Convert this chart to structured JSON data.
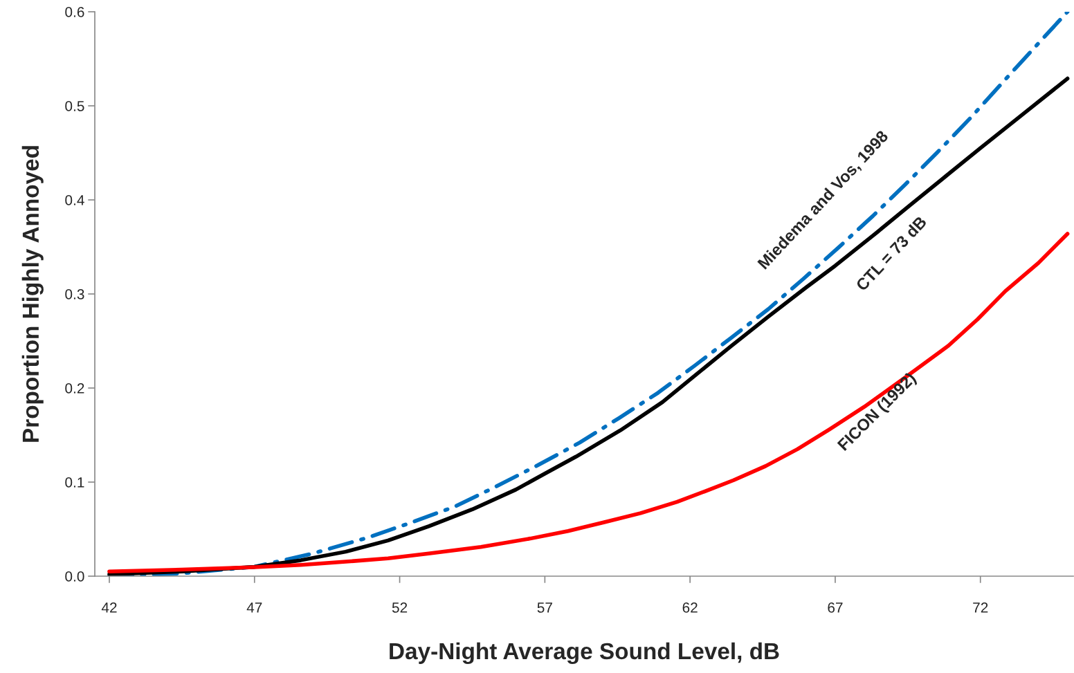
{
  "chart_data": {
    "type": "line",
    "xlabel": "Day-Night Average Sound Level, dB",
    "ylabel": "Proportion Highly Annoyed",
    "xlim": [
      41.5,
      75.2
    ],
    "ylim": [
      0,
      0.6
    ],
    "xticks": [
      42,
      47,
      52,
      57,
      62,
      67,
      72
    ],
    "yticks": [
      {
        "value": 0,
        "label": "0.0"
      },
      0.1,
      0.2,
      0.3,
      0.4,
      0.5,
      0.6
    ],
    "grid": false,
    "series": [
      {
        "color": "#0070c0",
        "line_style": "dashdot",
        "x": [
          42,
          44.5,
          47,
          49,
          50.9,
          52.4,
          53.9,
          55.3,
          56.76,
          58.2,
          59.55,
          60.9,
          62.17,
          63.4,
          64.7,
          65.9,
          67.1,
          68.3,
          69.4,
          70.5,
          71.67,
          73.3,
          75
        ],
        "values": [
          0.0,
          0.003,
          0.01,
          0.024,
          0.041,
          0.057,
          0.074,
          0.095,
          0.118,
          0.142,
          0.168,
          0.195,
          0.224,
          0.253,
          0.284,
          0.316,
          0.349,
          0.383,
          0.416,
          0.45,
          0.4875,
          0.543,
          0.6
        ]
      },
      {
        "color": "#000000",
        "line_style": "solid",
        "x": [
          42,
          44.5,
          47,
          48.6,
          50.14,
          51.6,
          53,
          54.5,
          56,
          57,
          58.07,
          59.6,
          61.05,
          62.2,
          63.43,
          64.7,
          66,
          67,
          68.3,
          69.6,
          70.8,
          72,
          73.5,
          75
        ],
        "values": [
          0.002,
          0.005,
          0.01,
          0.017,
          0.026,
          0.038,
          0.053,
          0.071,
          0.092,
          0.109,
          0.127,
          0.155,
          0.185,
          0.214,
          0.245,
          0.276,
          0.307,
          0.33,
          0.362,
          0.395,
          0.425,
          0.455,
          0.492,
          0.529
        ]
      },
      {
        "color": "#ff0000",
        "line_style": "solid",
        "x": [
          42,
          44.5,
          47,
          48.6,
          50.14,
          51.6,
          53,
          54.8,
          56.5,
          57.8,
          59,
          60.3,
          61.55,
          62.5,
          63.5,
          64.6,
          65.7,
          66.8,
          68,
          69.4,
          70.9,
          71.9,
          72.86,
          74,
          75
        ],
        "values": [
          0.005,
          0.007,
          0.0095,
          0.012,
          0.0154,
          0.019,
          0.024,
          0.031,
          0.04,
          0.048,
          0.057,
          0.067,
          0.079,
          0.09,
          0.102,
          0.117,
          0.135,
          0.156,
          0.18,
          0.211,
          0.245,
          0.273,
          0.303,
          0.333,
          0.364
        ]
      }
    ],
    "annotations": [
      "Miedema and Vos, 1998",
      "CTL = 73 dB",
      "FICON (1992)"
    ]
  }
}
